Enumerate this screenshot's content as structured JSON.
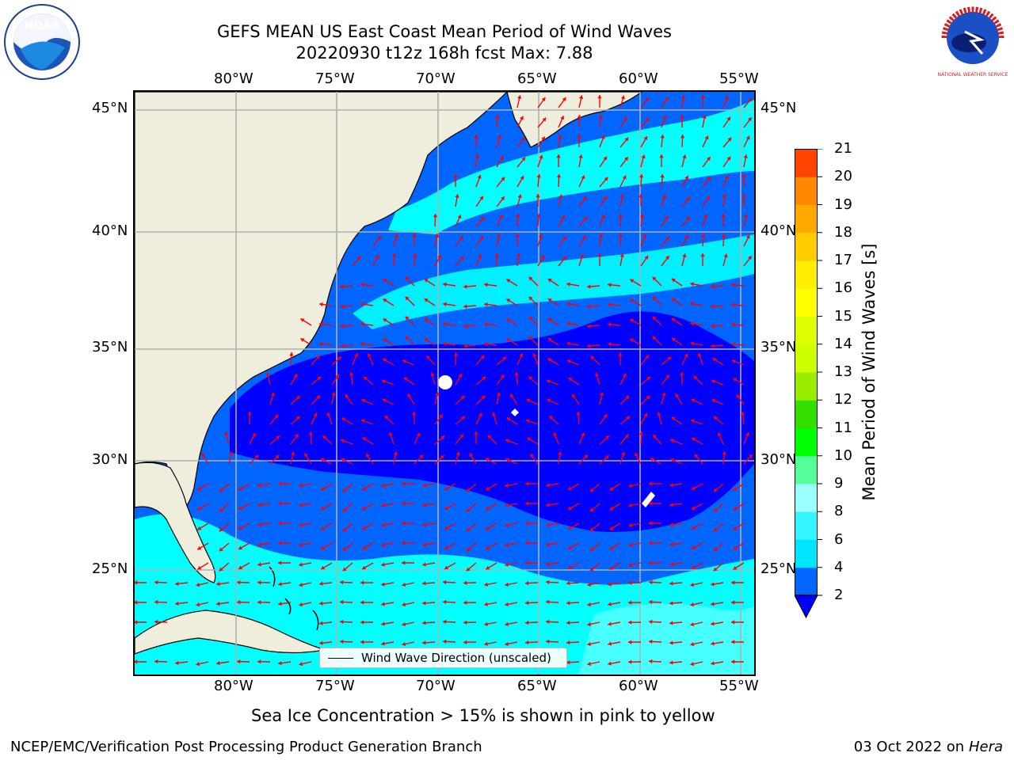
{
  "header": {
    "title_line1": "GEFS MEAN US East Coast Mean Period of Wind Waves",
    "title_line2": "20220930 t12z 168h fcst   Max: 7.88"
  },
  "logos": {
    "left": {
      "name": "noaa-logo",
      "text": "NOAA"
    },
    "right": {
      "name": "nws-logo",
      "text": "NATIONAL WEATHER SERVICE"
    }
  },
  "map": {
    "lon_labels": [
      "80°W",
      "75°W",
      "70°W",
      "65°W",
      "60°W",
      "55°W"
    ],
    "lat_labels": [
      "45°N",
      "40°N",
      "35°N",
      "30°N",
      "25°N"
    ],
    "legend": "Wind Wave Direction (unscaled)",
    "colors": {
      "land": "#efeddc",
      "ocean_deep": "#0000ff",
      "ocean_mid": "#0066ff",
      "ocean_light": "#00ffff",
      "arrow": "#ff0000",
      "grid": "#b0b0b0"
    }
  },
  "colorbar": {
    "label": "Mean Period of Wind Waves [s]",
    "ticks": [
      "2",
      "4",
      "6",
      "8",
      "9",
      "10",
      "11",
      "12",
      "13",
      "14",
      "15",
      "16",
      "17",
      "18",
      "19",
      "20",
      "21"
    ],
    "colors": [
      "#0066ff",
      "#00e5ff",
      "#33f5ff",
      "#99ffff",
      "#55ff99",
      "#00ff00",
      "#33dd00",
      "#99ee00",
      "#ccff00",
      "#ddff00",
      "#ffff00",
      "#ffee00",
      "#ffcc00",
      "#ffaa00",
      "#ff8800",
      "#ff4400",
      "#ff2200",
      "#ff0000"
    ],
    "extend_color": "#0000ff"
  },
  "notes": {
    "sea_ice": "Sea Ice Concentration > 15% is shown in pink to yellow",
    "footer_left": "NCEP/EMC/Verification Post Processing Product Generation Branch",
    "footer_date": "03 Oct 2022 on",
    "footer_host": "Hera"
  }
}
